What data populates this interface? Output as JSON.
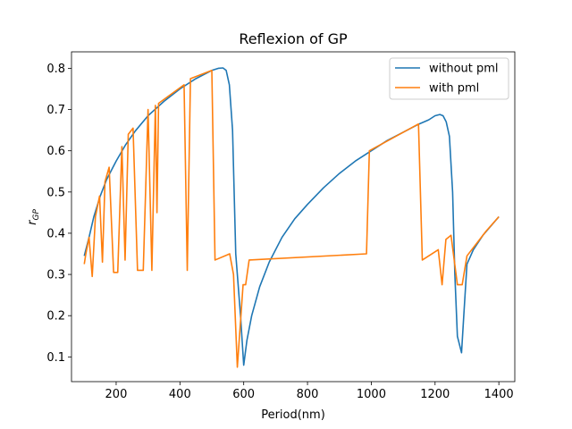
{
  "chart_data": {
    "type": "line",
    "title": "Reflexion of GP",
    "xlabel": "Period(nm)",
    "ylabel": "r_GP",
    "ylabel_main": "r",
    "ylabel_sub": "GP",
    "xlim": [
      60,
      1450
    ],
    "ylim": [
      0.04,
      0.84
    ],
    "xticks": [
      200,
      400,
      600,
      800,
      1000,
      1200,
      1400
    ],
    "yticks": [
      0.1,
      0.2,
      0.3,
      0.4,
      0.5,
      0.6,
      0.7,
      0.8
    ],
    "legend_position": "top-right",
    "series": [
      {
        "name": "without pml",
        "color": "#1f77b4",
        "points": [
          [
            100,
            0.345
          ],
          [
            115,
            0.39
          ],
          [
            130,
            0.44
          ],
          [
            150,
            0.49
          ],
          [
            170,
            0.53
          ],
          [
            200,
            0.575
          ],
          [
            230,
            0.615
          ],
          [
            260,
            0.648
          ],
          [
            300,
            0.685
          ],
          [
            350,
            0.72
          ],
          [
            400,
            0.75
          ],
          [
            450,
            0.775
          ],
          [
            500,
            0.795
          ],
          [
            520,
            0.8
          ],
          [
            535,
            0.801
          ],
          [
            545,
            0.795
          ],
          [
            555,
            0.76
          ],
          [
            565,
            0.65
          ],
          [
            575,
            0.35
          ],
          [
            590,
            0.2
          ],
          [
            600,
            0.08
          ],
          [
            610,
            0.14
          ],
          [
            625,
            0.2
          ],
          [
            650,
            0.27
          ],
          [
            680,
            0.33
          ],
          [
            720,
            0.39
          ],
          [
            760,
            0.435
          ],
          [
            800,
            0.47
          ],
          [
            850,
            0.51
          ],
          [
            900,
            0.545
          ],
          [
            950,
            0.575
          ],
          [
            1000,
            0.6
          ],
          [
            1050,
            0.625
          ],
          [
            1100,
            0.645
          ],
          [
            1150,
            0.665
          ],
          [
            1180,
            0.675
          ],
          [
            1200,
            0.685
          ],
          [
            1215,
            0.688
          ],
          [
            1225,
            0.685
          ],
          [
            1235,
            0.67
          ],
          [
            1245,
            0.635
          ],
          [
            1255,
            0.5
          ],
          [
            1262,
            0.3
          ],
          [
            1270,
            0.15
          ],
          [
            1283,
            0.11
          ],
          [
            1290,
            0.2
          ],
          [
            1300,
            0.325
          ],
          [
            1320,
            0.36
          ],
          [
            1350,
            0.395
          ],
          [
            1400,
            0.44
          ]
        ]
      },
      {
        "name": "with pml",
        "color": "#ff7f0e",
        "points": [
          [
            100,
            0.325
          ],
          [
            105,
            0.35
          ],
          [
            115,
            0.39
          ],
          [
            125,
            0.295
          ],
          [
            135,
            0.44
          ],
          [
            148,
            0.49
          ],
          [
            157,
            0.33
          ],
          [
            165,
            0.525
          ],
          [
            178,
            0.56
          ],
          [
            192,
            0.305
          ],
          [
            205,
            0.305
          ],
          [
            218,
            0.61
          ],
          [
            228,
            0.335
          ],
          [
            238,
            0.64
          ],
          [
            253,
            0.655
          ],
          [
            267,
            0.31
          ],
          [
            285,
            0.31
          ],
          [
            300,
            0.7
          ],
          [
            312,
            0.31
          ],
          [
            323,
            0.71
          ],
          [
            328,
            0.45
          ],
          [
            333,
            0.715
          ],
          [
            413,
            0.76
          ],
          [
            423,
            0.31
          ],
          [
            433,
            0.775
          ],
          [
            500,
            0.795
          ],
          [
            510,
            0.335
          ],
          [
            556,
            0.35
          ],
          [
            568,
            0.3
          ],
          [
            580,
            0.075
          ],
          [
            598,
            0.275
          ],
          [
            606,
            0.275
          ],
          [
            617,
            0.335
          ],
          [
            985,
            0.35
          ],
          [
            994,
            0.6
          ],
          [
            1148,
            0.665
          ],
          [
            1160,
            0.335
          ],
          [
            1210,
            0.36
          ],
          [
            1222,
            0.275
          ],
          [
            1234,
            0.385
          ],
          [
            1250,
            0.395
          ],
          [
            1270,
            0.275
          ],
          [
            1285,
            0.275
          ],
          [
            1300,
            0.345
          ],
          [
            1330,
            0.375
          ],
          [
            1360,
            0.405
          ],
          [
            1400,
            0.44
          ]
        ]
      }
    ]
  }
}
